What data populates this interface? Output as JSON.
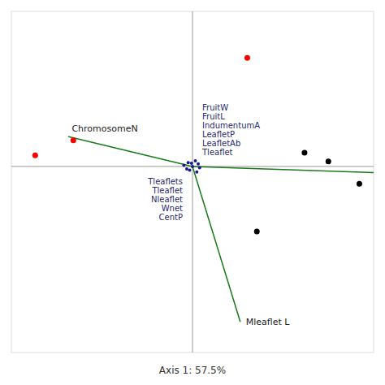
{
  "chart_data": {
    "type": "scatter",
    "xlabel": "Axis 1: 57.5%",
    "xlim": [
      -3.8,
      3.8
    ],
    "ylim": [
      -3.0,
      2.5
    ],
    "xticks": [
      0
    ],
    "yticks": [
      0
    ],
    "grid": true,
    "tick_labels": false,
    "series": [
      {
        "type": "scatter",
        "color": "red",
        "marker": "circle",
        "x": [
          -3.3,
          -2.5,
          1.15
        ],
        "values": [
          0.18,
          0.42,
          1.75
        ]
      },
      {
        "type": "scatter",
        "color": "black",
        "marker": "circle",
        "x": [
          2.35,
          2.85,
          3.5,
          1.35
        ],
        "values": [
          0.22,
          0.08,
          -0.28,
          -1.05
        ]
      },
      {
        "type": "scatter",
        "color": "#1a1a8c",
        "marker": "circle",
        "x": [
          -0.18,
          0.0,
          0.12,
          -0.06,
          0.09,
          -0.09,
          0.06,
          -0.02,
          0.15,
          -0.12
        ],
        "values": [
          0.02,
          0.0,
          0.04,
          -0.06,
          -0.09,
          0.06,
          0.09,
          0.05,
          -0.02,
          -0.04
        ]
      },
      {
        "type": "vector",
        "color": "#1a7a1a",
        "x": [
          -2.6,
          1.0,
          3.8
        ],
        "values": [
          0.48,
          -2.5,
          -0.1
        ],
        "labels": [
          "ChromosomeN",
          "Mleaflet L",
          null
        ]
      }
    ],
    "annotations": [
      "FruitW",
      "FruitL",
      "IndumentumA",
      "LeafletP",
      "LeafletAb",
      "Tleaflet",
      "Tleaflets",
      "Tleaflet",
      "Nleaflet",
      "Wnet",
      "CentP"
    ]
  }
}
